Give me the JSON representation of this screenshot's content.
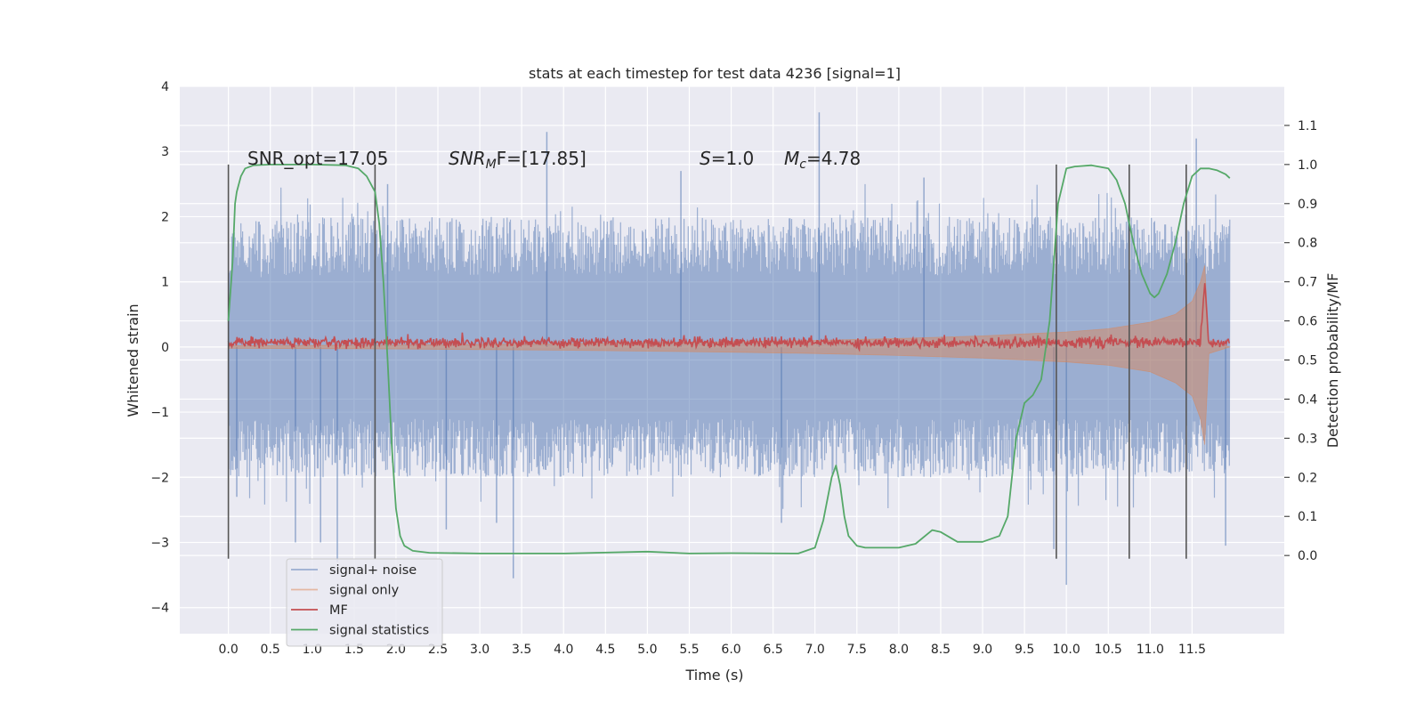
{
  "chart_data": {
    "type": "line",
    "title": "stats at each timestep for test data 4236 [signal=1]",
    "xlabel": "Time (s)",
    "ylabel": "Whitened strain",
    "y2label": "Detection probability/MF",
    "xlim": [
      -0.58,
      12.6
    ],
    "ylim": [
      -4.4,
      4.0
    ],
    "y2lim": [
      -0.2,
      1.2
    ],
    "x_ticks": [
      "0.0",
      "0.5",
      "1.0",
      "1.5",
      "2.0",
      "2.5",
      "3.0",
      "3.5",
      "4.0",
      "4.5",
      "5.0",
      "5.5",
      "6.0",
      "6.5",
      "7.0",
      "7.5",
      "8.0",
      "8.5",
      "9.0",
      "9.5",
      "10.0",
      "10.5",
      "11.0",
      "11.5"
    ],
    "y_ticks": [
      "4",
      "3",
      "2",
      "1",
      "0",
      "−1",
      "−2",
      "−3",
      "−4"
    ],
    "y2_ticks": [
      "1.1",
      "1.0",
      "0.9",
      "0.8",
      "0.7",
      "0.6",
      "0.5",
      "0.4",
      "0.3",
      "0.2",
      "0.1",
      "0.0"
    ],
    "grid": true,
    "legend_position": "lower-left",
    "colors": {
      "background": "#eaeaf2",
      "grid": "#ffffff",
      "signal_noise": "#4c72b0",
      "signal_only": "#dd8452",
      "mf": "#c44e52",
      "statistics": "#55a868",
      "vlines": "#555555"
    },
    "annotations": [
      "SNR_opt=17.05",
      "SNR",
      "M",
      "F=[17.85]",
      "S",
      "=1.0",
      "M",
      "c",
      "=4.78"
    ],
    "vertical_lines_x": [
      0.0,
      1.75,
      9.88,
      10.75,
      11.43
    ],
    "vertical_lines_ylim": [
      -3.25,
      2.8
    ],
    "signal_noise": {
      "x_range": [
        0.0,
        11.95
      ],
      "envelope_x": [
        0.0,
        1.0,
        2.0,
        3.0,
        4.0,
        5.0,
        6.0,
        7.0,
        8.0,
        9.0,
        10.0,
        11.0,
        11.95
      ],
      "envelope_upper": [
        1.9,
        2.0,
        2.0,
        2.0,
        2.0,
        2.0,
        2.0,
        2.0,
        2.0,
        2.0,
        2.0,
        2.0,
        2.0
      ],
      "envelope_lower": [
        -2.0,
        -2.0,
        -2.0,
        -2.0,
        -2.0,
        -2.0,
        -2.0,
        -2.0,
        -2.0,
        -2.0,
        -2.0,
        -2.0,
        -2.0
      ],
      "spikes_x": [
        0.1,
        0.8,
        1.1,
        1.3,
        1.9,
        2.6,
        3.2,
        3.4,
        3.8,
        5.4,
        6.6,
        7.05,
        8.3,
        9.85,
        10.0,
        11.55,
        11.9
      ],
      "spikes_y": [
        -2.3,
        -3.0,
        -3.0,
        -3.3,
        2.5,
        -2.8,
        -2.7,
        -3.55,
        3.3,
        2.7,
        -2.7,
        3.6,
        2.6,
        -3.1,
        -3.65,
        3.2,
        -3.05
      ]
    },
    "signal_only": {
      "x": [
        0.0,
        2.0,
        4.0,
        6.0,
        7.0,
        8.0,
        9.0,
        10.0,
        10.5,
        11.0,
        11.3,
        11.5,
        11.6,
        11.65,
        11.7,
        11.95
      ],
      "upper": [
        0.02,
        0.03,
        0.05,
        0.08,
        0.1,
        0.13,
        0.17,
        0.23,
        0.28,
        0.38,
        0.5,
        0.7,
        1.0,
        1.25,
        0.1,
        0.0
      ],
      "lower": [
        -0.02,
        -0.03,
        -0.05,
        -0.08,
        -0.1,
        -0.13,
        -0.17,
        -0.23,
        -0.28,
        -0.38,
        -0.55,
        -0.75,
        -1.1,
        -1.5,
        -0.1,
        0.0
      ]
    },
    "mf": {
      "x_range": [
        0.0,
        11.95
      ],
      "baseline": 0.07,
      "amplitude": 0.08,
      "peak_x": 11.65,
      "peak_y": 1.0
    },
    "signal_statistics": {
      "axis": "right",
      "x": [
        0.0,
        0.05,
        0.08,
        0.1,
        0.15,
        0.2,
        0.3,
        0.5,
        1.0,
        1.4,
        1.55,
        1.65,
        1.75,
        1.8,
        1.85,
        1.9,
        1.95,
        2.0,
        2.05,
        2.1,
        2.2,
        2.4,
        3.0,
        4.0,
        5.0,
        5.5,
        6.0,
        6.8,
        7.0,
        7.1,
        7.2,
        7.25,
        7.3,
        7.35,
        7.4,
        7.5,
        7.6,
        8.0,
        8.2,
        8.4,
        8.5,
        8.7,
        9.0,
        9.2,
        9.3,
        9.4,
        9.5,
        9.6,
        9.7,
        9.8,
        9.9,
        10.0,
        10.1,
        10.3,
        10.5,
        10.6,
        10.7,
        10.8,
        10.9,
        11.0,
        11.05,
        11.1,
        11.2,
        11.3,
        11.4,
        11.5,
        11.6,
        11.7,
        11.8,
        11.9,
        11.95
      ],
      "y": [
        0.6,
        0.75,
        0.9,
        0.93,
        0.97,
        0.99,
        0.998,
        1.0,
        1.0,
        0.998,
        0.99,
        0.97,
        0.93,
        0.85,
        0.7,
        0.5,
        0.28,
        0.12,
        0.05,
        0.025,
        0.012,
        0.007,
        0.005,
        0.005,
        0.01,
        0.005,
        0.006,
        0.005,
        0.02,
        0.09,
        0.2,
        0.23,
        0.18,
        0.1,
        0.05,
        0.025,
        0.02,
        0.02,
        0.03,
        0.065,
        0.06,
        0.035,
        0.035,
        0.05,
        0.1,
        0.3,
        0.39,
        0.41,
        0.45,
        0.6,
        0.9,
        0.99,
        0.995,
        0.998,
        0.99,
        0.96,
        0.9,
        0.8,
        0.72,
        0.67,
        0.66,
        0.67,
        0.72,
        0.8,
        0.9,
        0.97,
        0.99,
        0.99,
        0.985,
        0.975,
        0.965
      ]
    },
    "legend": [
      {
        "label": "signal+ noise",
        "color": "#4c72b0",
        "opacity": 0.5
      },
      {
        "label": "signal only",
        "color": "#dd8452",
        "opacity": 0.5
      },
      {
        "label": "MF",
        "color": "#c44e52",
        "opacity": 1.0
      },
      {
        "label": "signal statistics",
        "color": "#55a868",
        "opacity": 1.0
      }
    ]
  }
}
